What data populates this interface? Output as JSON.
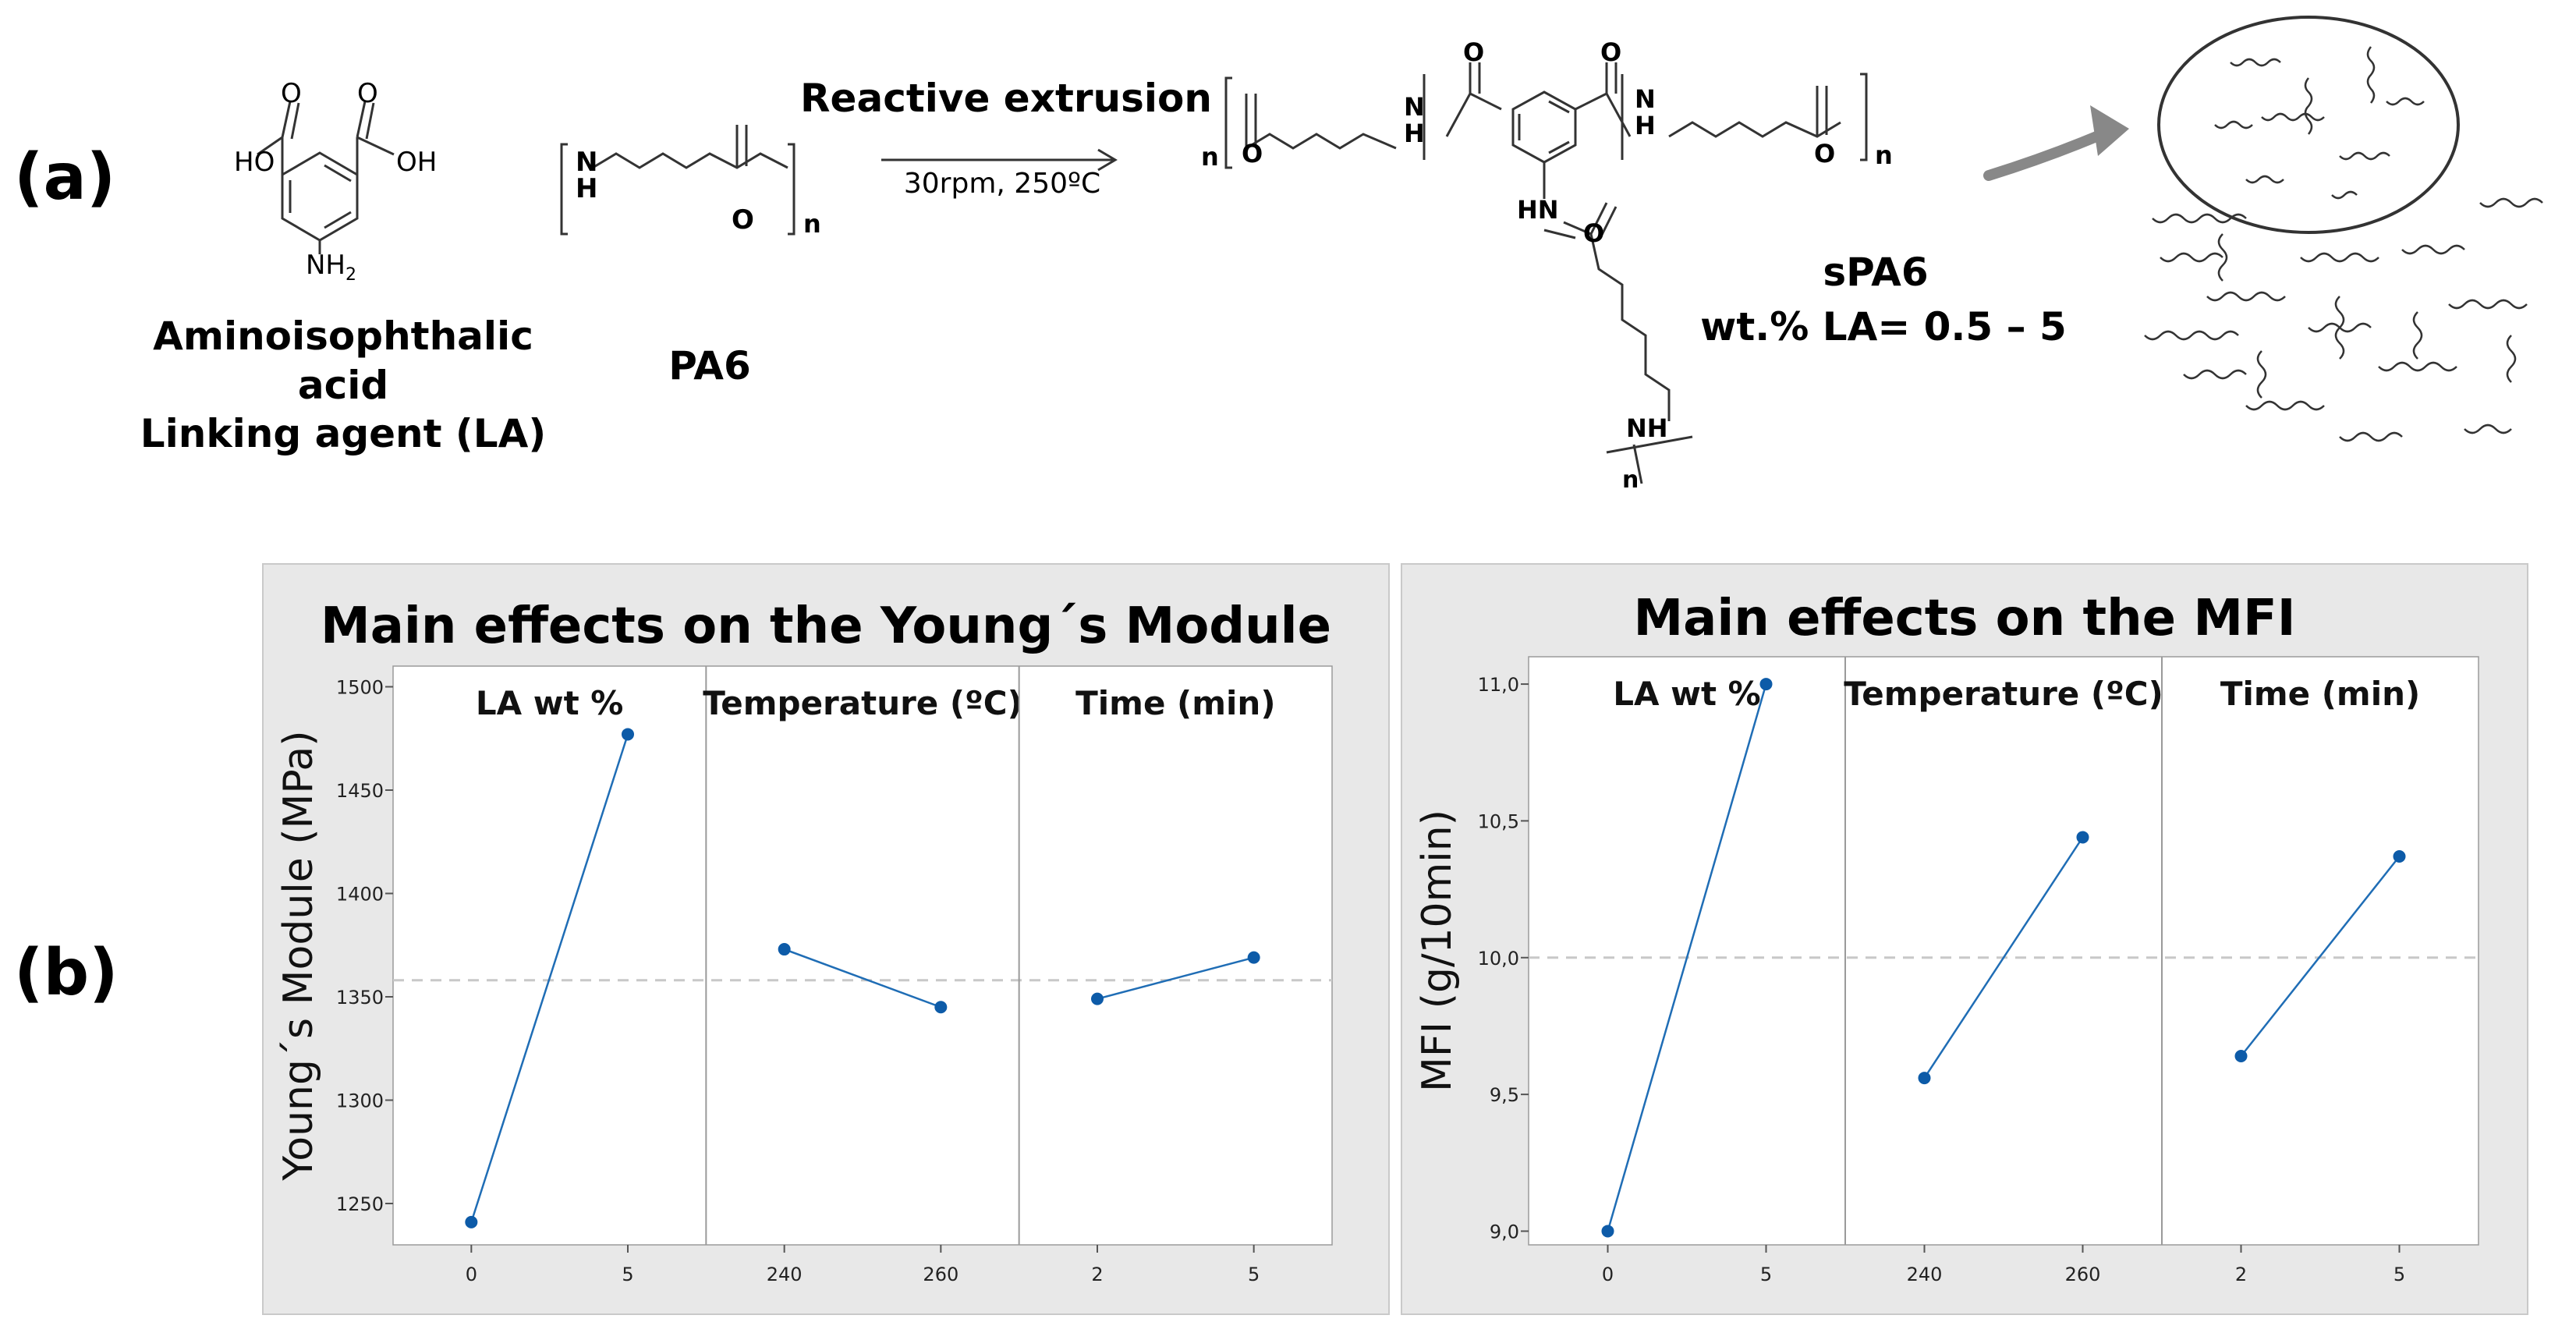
{
  "panel_a": {
    "label": "(a)",
    "la_name_line1": "Aminoisophthalic acid",
    "la_name_line2": "Linking agent (LA)",
    "pa6_name": "PA6",
    "arrow_title": "Reactive extrusion",
    "arrow_conditions": "30rpm, 250ºC",
    "product_name": "sPA6",
    "product_la": "wt.% LA= 0.5 – 5",
    "atoms": {
      "ho": "HO",
      "oh": "OH",
      "o": "O",
      "nh2": "NH",
      "sub2": "2",
      "n_label": "N",
      "h_label": "H",
      "hn": "HN",
      "nh": "NH",
      "n": "n"
    }
  },
  "panel_b": {
    "label": "(b)"
  },
  "chart_data": [
    {
      "type": "line",
      "title": "Main effects on the Young´s Module",
      "ylabel": "Young´s Module (MPa)",
      "xlabel": "",
      "ylim": [
        1230,
        1510
      ],
      "yticks": [
        1250,
        1300,
        1350,
        1400,
        1450,
        1500
      ],
      "reference_line": 1358,
      "grid": false,
      "panels": [
        {
          "name": "LA wt %",
          "x": [
            "0",
            "5"
          ],
          "values": [
            1241,
            1477
          ]
        },
        {
          "name": "Temperature (ºC)",
          "x": [
            "240",
            "260"
          ],
          "values": [
            1373,
            1345
          ]
        },
        {
          "name": "Time (min)",
          "x": [
            "2",
            "5"
          ],
          "values": [
            1349,
            1369
          ]
        }
      ]
    },
    {
      "type": "line",
      "title": "Main effects on the MFI",
      "ylabel": "MFI (g/10min)",
      "xlabel": "",
      "ylim": [
        8.95,
        11.1
      ],
      "yticks": [
        9.0,
        9.5,
        10.0,
        10.5,
        11.0
      ],
      "ytick_labels": [
        "9,0",
        "9,5",
        "10,0",
        "10,5",
        "11,0"
      ],
      "reference_line": 10.0,
      "grid": false,
      "panels": [
        {
          "name": "LA wt %",
          "x": [
            "0",
            "5"
          ],
          "values": [
            9.0,
            11.0
          ]
        },
        {
          "name": "Temperature (ºC)",
          "x": [
            "240",
            "260"
          ],
          "values": [
            9.56,
            10.44
          ]
        },
        {
          "name": "Time (min)",
          "x": [
            "2",
            "5"
          ],
          "values": [
            9.64,
            10.37
          ]
        }
      ]
    }
  ],
  "colors": {
    "series": "#1f6db5",
    "marker": "#0d5ba8",
    "refline": "#c8c8c8",
    "chart_bg": "#e8e8e8",
    "plot_bg": "#ffffff"
  }
}
